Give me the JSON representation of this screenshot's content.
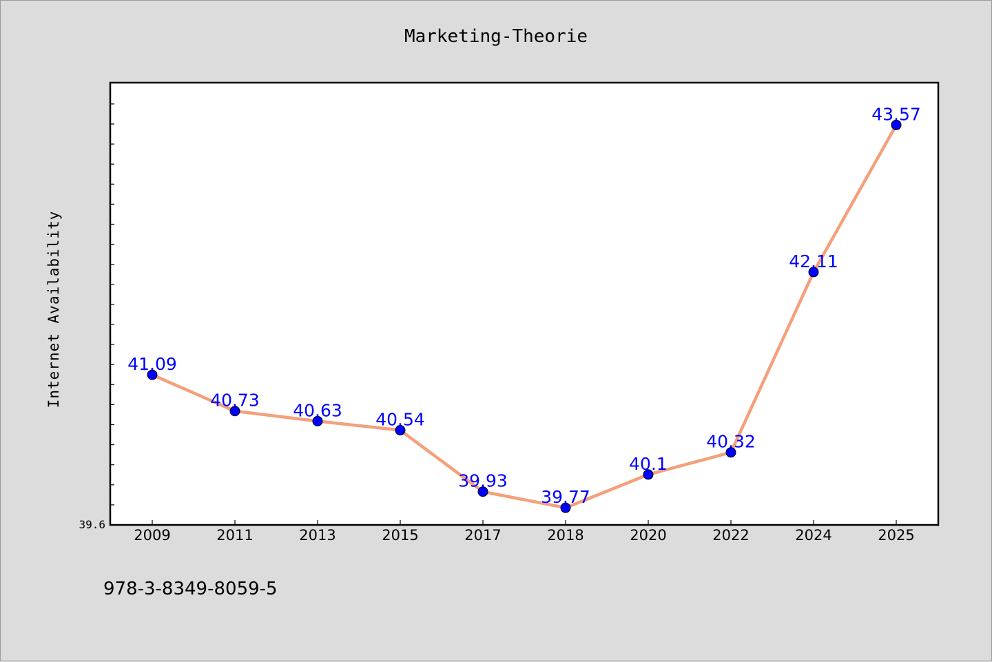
{
  "chart_data": {
    "type": "line",
    "title": "Marketing-Theorie",
    "xlabel": "",
    "ylabel": "Internet Availability",
    "categories": [
      "2009",
      "2011",
      "2013",
      "2015",
      "2017",
      "2018",
      "2020",
      "2022",
      "2024",
      "2025"
    ],
    "series": [
      {
        "values": [
          41.09,
          40.73,
          40.63,
          40.54,
          39.93,
          39.77,
          40.1,
          40.32,
          42.11,
          43.57
        ],
        "data_labels": [
          "41.09",
          "40.73",
          "40.63",
          "40.54",
          "39.93",
          "39.77",
          "40.1",
          "40.32",
          "42.11",
          "43.57"
        ],
        "line_color": "#f4a07c",
        "marker_color": "#0000ff"
      }
    ],
    "y_tick_label": "39.6",
    "ylim": [
      39.6,
      43.99
    ],
    "grid": false,
    "legend": "none",
    "plot_background": "#ffffff",
    "figure_background": "#dcdcdc"
  },
  "footer": {
    "isbn": "978-3-8349-8059-5"
  }
}
